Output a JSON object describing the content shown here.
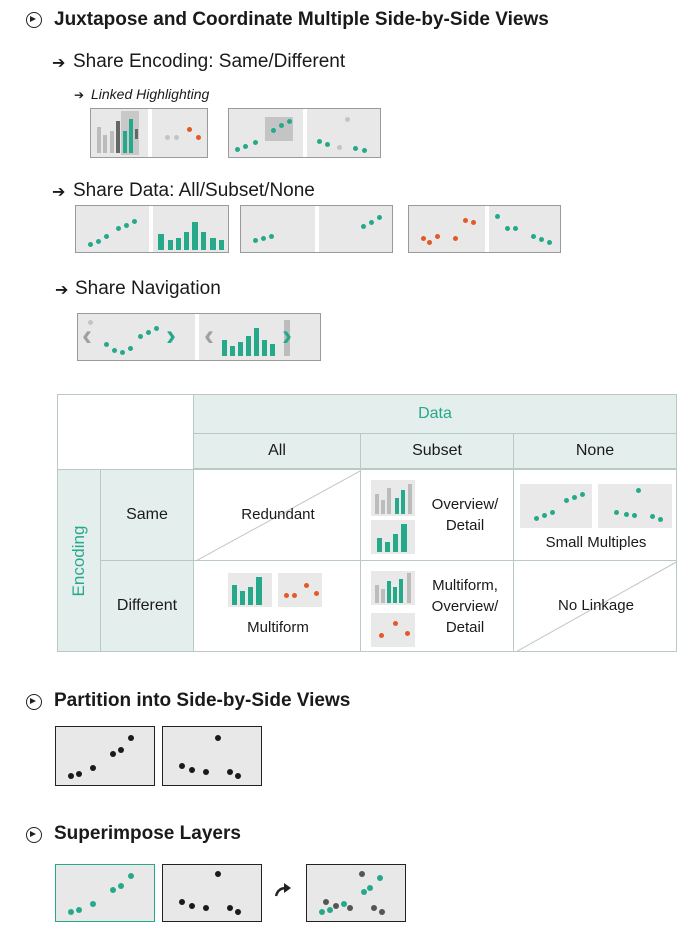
{
  "sections": {
    "juxtapose": {
      "title": "Juxtapose and Coordinate Multiple Side-by-Side Views"
    },
    "share_encoding": {
      "label": "Share Encoding: Same/Different"
    },
    "linked_highlighting": {
      "label": "Linked Highlighting"
    },
    "share_data": {
      "label": "Share Data: All/Subset/None"
    },
    "share_navigation": {
      "label": "Share Navigation"
    },
    "partition": {
      "title": "Partition into Side-by-Side Views"
    },
    "superimpose": {
      "title": "Superimpose Layers"
    }
  },
  "matrix": {
    "data_header": "Data",
    "columns": [
      "All",
      "Subset",
      "None"
    ],
    "encoding_header": "Encoding",
    "rows": [
      "Same",
      "Different"
    ],
    "cells": {
      "same_all": "Redundant",
      "same_subset": "Overview/ Detail",
      "same_none": "Small Multiples",
      "diff_all": "Multiform",
      "diff_subset": "Multiform, Overview/ Detail",
      "diff_none": "No Linkage"
    }
  },
  "colors": {
    "teal": "#26a98b",
    "orange": "#e25a27",
    "header_bg": "#e4eeec",
    "gray": "#bcbcbc"
  },
  "icons": [
    "circle-arrow-icon",
    "arrow-right-icon",
    "chevron-left-icon",
    "chevron-right-icon",
    "curved-arrow-icon"
  ]
}
